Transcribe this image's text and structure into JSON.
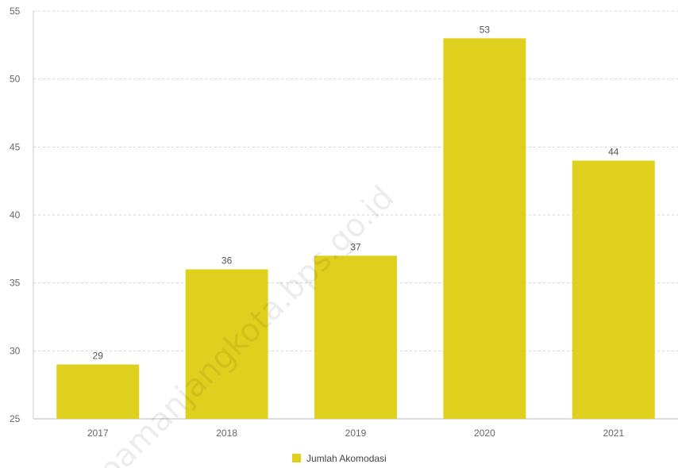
{
  "chart_data": {
    "type": "bar",
    "categories": [
      "2017",
      "2018",
      "2019",
      "2020",
      "2021"
    ],
    "series": [
      {
        "name": "Jumlah Akomodasi",
        "values": [
          29,
          36,
          37,
          53,
          44
        ]
      }
    ],
    "ylim": [
      25,
      55
    ],
    "yticks": [
      25,
      30,
      35,
      40,
      45,
      50,
      55
    ],
    "grid": true,
    "legend_position": "bottom-center",
    "bar_color": "#e0d01e"
  },
  "watermark_text": "pamanjangkota.bps.go.id"
}
